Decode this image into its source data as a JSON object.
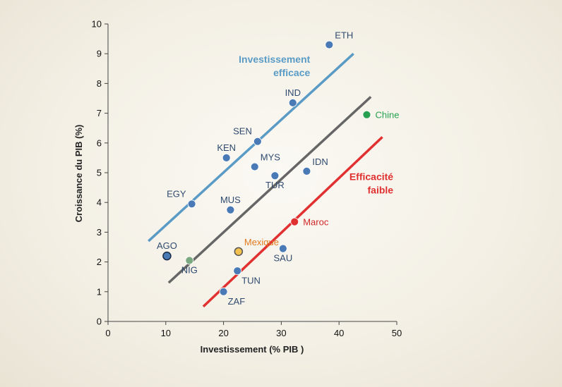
{
  "chart_data": {
    "type": "scatter",
    "xlabel": "Investissement (% PIB )",
    "ylabel": "Croissance du PIB (%)",
    "xlim": [
      0,
      50
    ],
    "ylim": [
      0,
      10
    ],
    "xticks": [
      "0",
      "10",
      "20",
      "30",
      "40",
      "50"
    ],
    "yticks": [
      "0",
      "1",
      "2",
      "3",
      "4",
      "5",
      "6",
      "7",
      "8",
      "9",
      "10"
    ],
    "grid": false,
    "points": [
      {
        "label": "ETH",
        "x": 38.3,
        "y": 9.3,
        "color": "#4a7ab5",
        "label_color": "#2f4a6e",
        "label_pos": "above-right"
      },
      {
        "label": "IND",
        "x": 32.0,
        "y": 7.35,
        "color": "#4a7ab5",
        "label_color": "#2f4a6e",
        "label_pos": "above"
      },
      {
        "label": "SEN",
        "x": 25.9,
        "y": 6.05,
        "color": "#4a7ab5",
        "label_color": "#2f4a6e",
        "label_pos": "above-left"
      },
      {
        "label": "KEN",
        "x": 20.5,
        "y": 5.5,
        "color": "#4a7ab5",
        "label_color": "#2f4a6e",
        "label_pos": "above"
      },
      {
        "label": "MYS",
        "x": 25.4,
        "y": 5.2,
        "color": "#4a7ab5",
        "label_color": "#2f4a6e",
        "label_pos": "above-right"
      },
      {
        "label": "TUR",
        "x": 28.9,
        "y": 4.9,
        "color": "#4a7ab5",
        "label_color": "#2f4a6e",
        "label_pos": "below"
      },
      {
        "label": "IDN",
        "x": 34.4,
        "y": 5.05,
        "color": "#4a7ab5",
        "label_color": "#2f4a6e",
        "label_pos": "above-right"
      },
      {
        "label": "EGY",
        "x": 14.5,
        "y": 3.95,
        "color": "#4a7ab5",
        "label_color": "#2f4a6e",
        "label_pos": "above-left"
      },
      {
        "label": "MUS",
        "x": 21.2,
        "y": 3.75,
        "color": "#4a7ab5",
        "label_color": "#2f4a6e",
        "label_pos": "above"
      },
      {
        "label": "AGO",
        "x": 10.2,
        "y": 2.2,
        "color": "#4a7ab5",
        "stroke": "#1a2a44",
        "label_color": "#2f4a6e",
        "label_pos": "above"
      },
      {
        "label": "NIG",
        "x": 14.1,
        "y": 2.05,
        "color": "#7aa87f",
        "label_color": "#2f4a6e",
        "label_pos": "below"
      },
      {
        "label": "Mexique",
        "x": 22.6,
        "y": 2.35,
        "color": "#f2c14e",
        "stroke": "#555555",
        "label_color": "#e07b1f",
        "label_pos": "above-right"
      },
      {
        "label": "SAU",
        "x": 30.3,
        "y": 2.45,
        "color": "#4a7ab5",
        "label_color": "#2f4a6e",
        "label_pos": "below"
      },
      {
        "label": "TUN",
        "x": 22.4,
        "y": 1.7,
        "color": "#4a7ab5",
        "label_color": "#2f4a6e",
        "label_pos": "below-right"
      },
      {
        "label": "ZAF",
        "x": 20.0,
        "y": 1.0,
        "color": "#4a7ab5",
        "label_color": "#2f4a6e",
        "label_pos": "below-right"
      },
      {
        "label": "Maroc",
        "x": 32.3,
        "y": 3.35,
        "color": "#e03030",
        "label_color": "#d02828",
        "label_pos": "right"
      },
      {
        "label": "Chine",
        "x": 44.8,
        "y": 6.95,
        "color": "#27a050",
        "label_color": "#27a050",
        "label_pos": "right"
      }
    ],
    "lines": [
      {
        "name": "Investissement efficace",
        "color": "#5a9bc6",
        "x1": 7.0,
        "y1": 2.7,
        "x2": 42.5,
        "y2": 9.0,
        "label_lines": [
          "Investissement",
          "efficace"
        ],
        "label_x": 35.0,
        "label_y": 8.7
      },
      {
        "name": "",
        "color": "#666666",
        "x1": 10.5,
        "y1": 1.3,
        "x2": 45.5,
        "y2": 7.55
      },
      {
        "name": "Efficacité faible",
        "color": "#e03030",
        "x1": 16.5,
        "y1": 0.5,
        "x2": 47.5,
        "y2": 6.2,
        "label_lines": [
          "Efficacité",
          "faible"
        ],
        "label_x": 49.4,
        "label_y": 4.75
      }
    ]
  }
}
